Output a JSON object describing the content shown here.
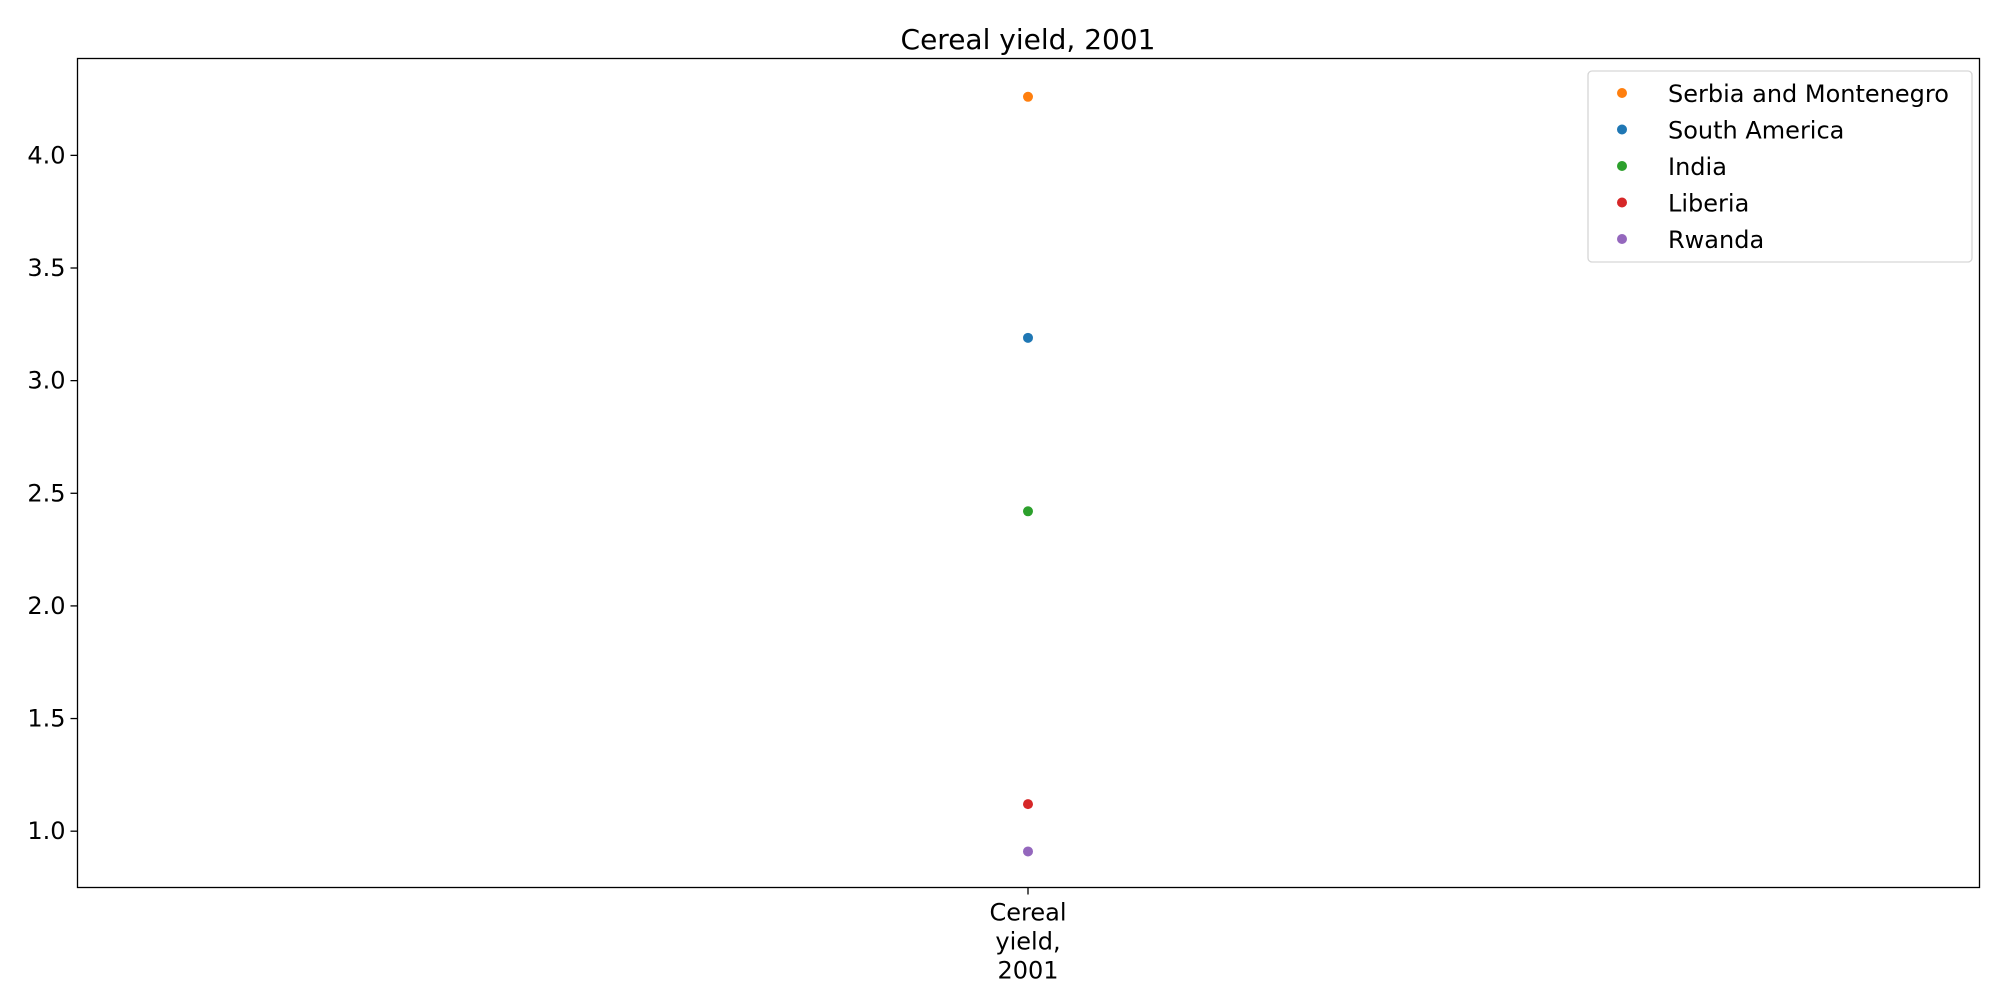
{
  "chart_data": {
    "type": "scatter",
    "title": "Cereal yield, 2001",
    "xlabel": "",
    "ylabel": "",
    "categories": [
      "Cereal\nyield,\n2001"
    ],
    "ylim": [
      0.75,
      4.43
    ],
    "yticks": [
      "1.0",
      "1.5",
      "2.0",
      "2.5",
      "3.0",
      "3.5",
      "4.0"
    ],
    "grid": false,
    "legend_position": "top-right",
    "series": [
      {
        "name": "Serbia and Montenegro",
        "values": [
          4.26
        ],
        "color": "#ff7f0e"
      },
      {
        "name": "South America",
        "values": [
          3.19
        ],
        "color": "#1f77b4"
      },
      {
        "name": "India",
        "values": [
          2.42
        ],
        "color": "#2ca02c"
      },
      {
        "name": "Liberia",
        "values": [
          1.12
        ],
        "color": "#d62728"
      },
      {
        "name": "Rwanda",
        "values": [
          0.91
        ],
        "color": "#9467bd"
      }
    ]
  }
}
